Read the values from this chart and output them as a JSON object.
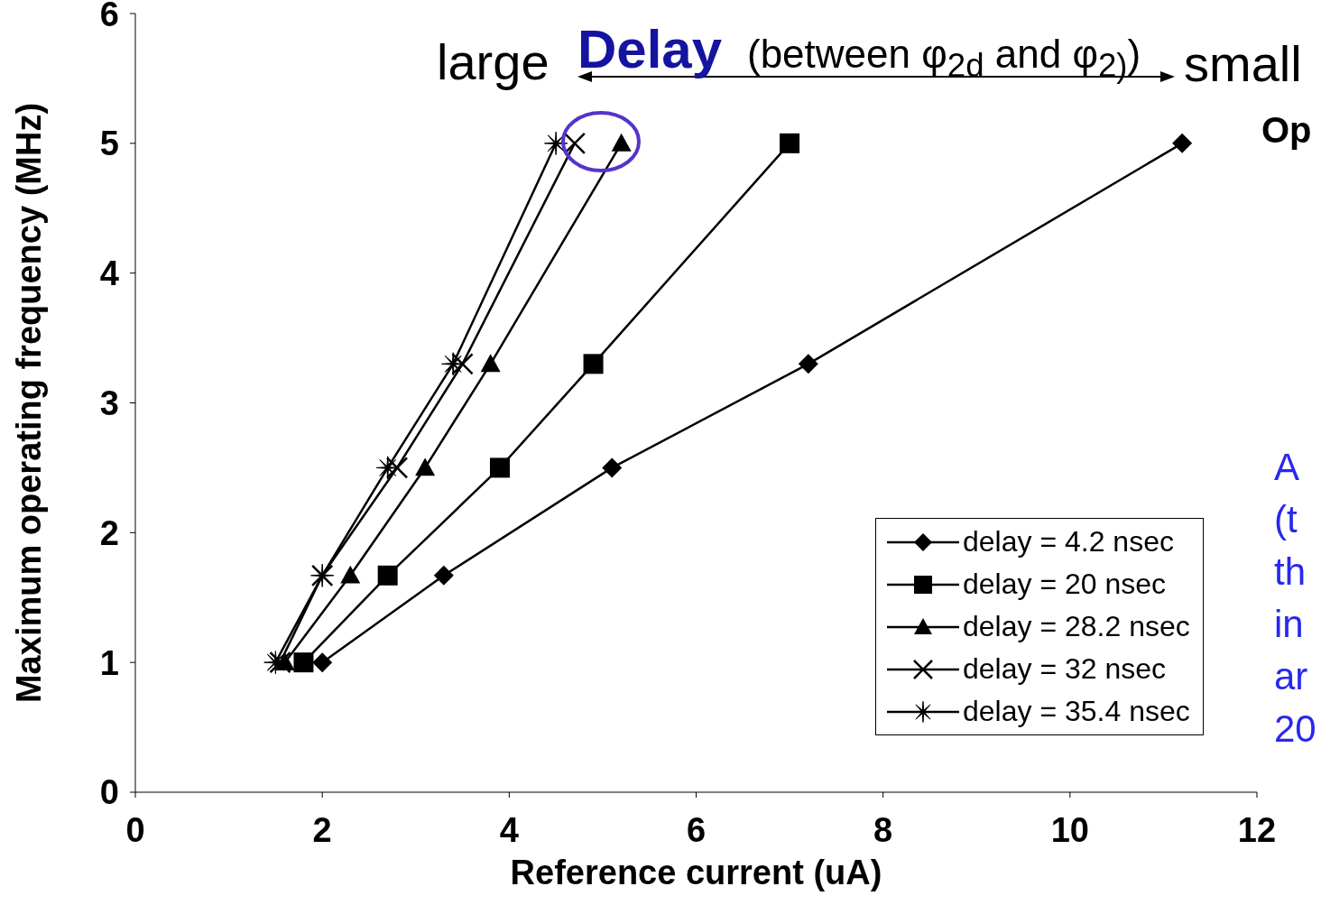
{
  "chart_data": {
    "type": "line",
    "xlabel": "Reference current (uA)",
    "ylabel": "Maximum operating frequency (MHz)",
    "xlim": [
      0,
      12
    ],
    "xticks": [
      0,
      2,
      4,
      6,
      8,
      10,
      12
    ],
    "ylim": [
      0,
      6
    ],
    "yticks": [
      0,
      1,
      2,
      3,
      4,
      5,
      6
    ],
    "grid": false,
    "legend": "bottom right",
    "line_style": "solid",
    "series": [
      {
        "name": "delay = 4.2 nsec",
        "color": "#000000",
        "marker": "diamond",
        "x": [
          2.0,
          3.3,
          5.1,
          7.2,
          11.2
        ],
        "values": [
          1,
          1.67,
          2.5,
          3.3,
          5
        ]
      },
      {
        "name": "delay = 20 nsec",
        "color": "#000000",
        "marker": "square",
        "x": [
          1.8,
          2.7,
          3.9,
          4.9,
          7.0
        ],
        "values": [
          1,
          1.67,
          2.5,
          3.3,
          5
        ]
      },
      {
        "name": "delay = 28.2 nsec",
        "color": "#000000",
        "marker": "triangle",
        "x": [
          1.6,
          2.3,
          3.1,
          3.8,
          5.2
        ],
        "values": [
          1,
          1.67,
          2.5,
          3.3,
          5
        ]
      },
      {
        "name": "delay = 32 nsec",
        "color": "#000000",
        "marker": "cross",
        "x": [
          1.55,
          2.0,
          2.8,
          3.5,
          4.7
        ],
        "values": [
          1,
          1.67,
          2.5,
          3.3,
          5
        ]
      },
      {
        "name": "delay = 35.4 nsec",
        "color": "#000000",
        "marker": "star",
        "x": [
          1.5,
          2.0,
          2.7,
          3.4,
          4.5
        ],
        "values": [
          1,
          1.67,
          2.5,
          3.3,
          5
        ]
      }
    ],
    "annotations": [
      "large",
      "Delay",
      "(between φ$_{2d}$ and φ$_{2)}$)",
      "small",
      "Op",
      "A",
      "(t",
      "th",
      "in",
      "ar",
      "20"
    ]
  }
}
